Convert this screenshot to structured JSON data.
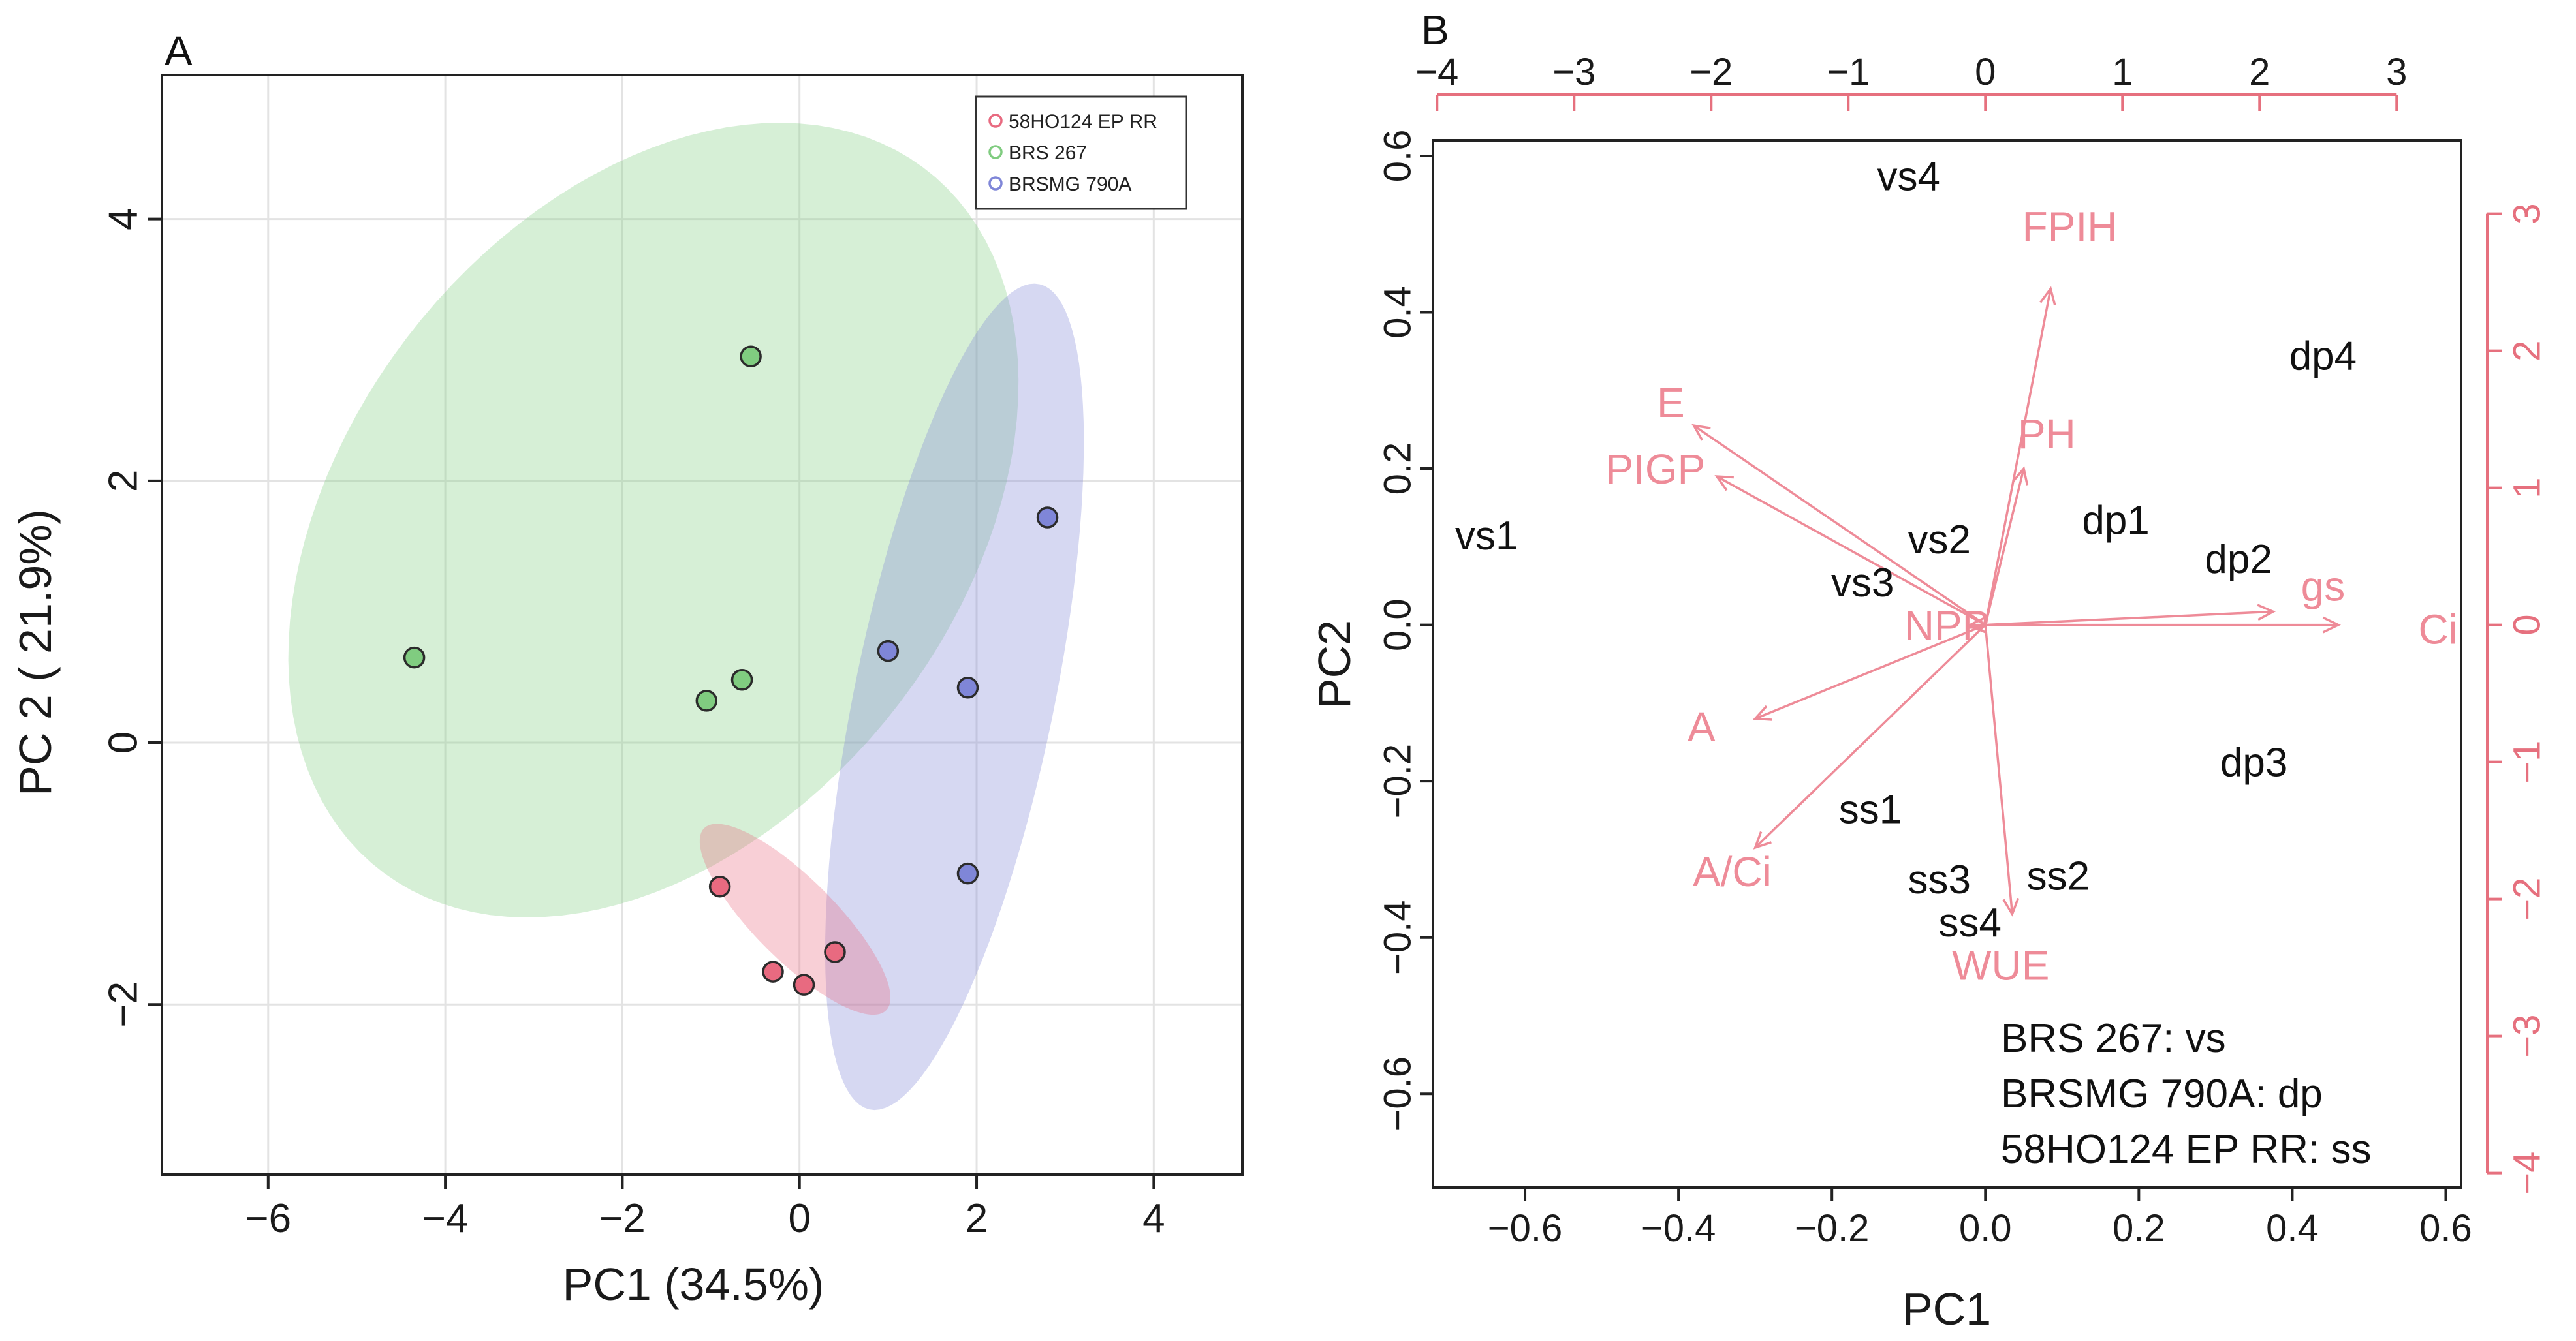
{
  "chart_data": [
    {
      "type": "scatter",
      "panel_label": "A",
      "xlabel": "PC1 (34.5%)",
      "ylabel": "PC 2 ( 21.9%)",
      "xlim": [
        -7.2,
        5.0
      ],
      "ylim": [
        -3.3,
        5.1
      ],
      "xticks": [
        -6,
        -4,
        -2,
        0,
        2,
        4
      ],
      "yticks": [
        -2,
        0,
        2,
        4
      ],
      "grid": true,
      "legend_position": "top-right",
      "series": [
        {
          "name": "58HO124 EP RR",
          "color": "#e86a80",
          "points": [
            [
              -0.9,
              -1.1
            ],
            [
              -0.3,
              -1.75
            ],
            [
              0.05,
              -1.85
            ],
            [
              0.4,
              -1.6
            ]
          ],
          "ellipse": {
            "center": [
              -0.05,
              -1.35
            ],
            "semi_axes": [
              1.25,
              0.36
            ],
            "angle_deg": -32
          }
        },
        {
          "name": "BRS 267",
          "color": "#80cc80",
          "points": [
            [
              -0.55,
              2.95
            ],
            [
              -4.35,
              0.65
            ],
            [
              -0.65,
              0.48
            ],
            [
              -1.05,
              0.32
            ]
          ],
          "ellipse": {
            "center": [
              -1.65,
              1.7
            ],
            "semi_axes": [
              4.35,
              2.7
            ],
            "angle_deg": 24
          }
        },
        {
          "name": "BRSMG 790A",
          "color": "#7f86d8",
          "points": [
            [
              2.8,
              1.72
            ],
            [
              1.0,
              0.7
            ],
            [
              1.9,
              0.42
            ],
            [
              1.9,
              -1.0
            ]
          ],
          "ellipse": {
            "center": [
              1.75,
              0.35
            ],
            "semi_axes": [
              3.3,
              1.1
            ],
            "angle_deg": 72
          }
        }
      ]
    },
    {
      "type": "scatter",
      "panel_label": "B",
      "xlabel": "PC1",
      "ylabel": "PC2",
      "xlim": [
        -0.72,
        0.62
      ],
      "ylim": [
        -0.72,
        0.62
      ],
      "xticks": [
        -0.6,
        -0.4,
        -0.2,
        0.0,
        0.2,
        0.4,
        0.6
      ],
      "yticks": [
        -0.6,
        -0.4,
        -0.2,
        0.0,
        0.2,
        0.4,
        0.6
      ],
      "top_axis_ticks": [
        -4,
        -3,
        -2,
        -1,
        0,
        1,
        2,
        3
      ],
      "right_axis_ticks": [
        -4,
        -3,
        -2,
        -1,
        0,
        1,
        2,
        3
      ],
      "observations": [
        {
          "label": "vs4",
          "x": -0.1,
          "y": 0.57
        },
        {
          "label": "dp4",
          "x": 0.44,
          "y": 0.34
        },
        {
          "label": "vs1",
          "x": -0.65,
          "y": 0.11
        },
        {
          "label": "dp1",
          "x": 0.17,
          "y": 0.13
        },
        {
          "label": "vs2",
          "x": -0.06,
          "y": 0.105
        },
        {
          "label": "dp2",
          "x": 0.33,
          "y": 0.08
        },
        {
          "label": "vs3",
          "x": -0.16,
          "y": 0.05
        },
        {
          "label": "dp3",
          "x": 0.35,
          "y": -0.18
        },
        {
          "label": "ss1",
          "x": -0.15,
          "y": -0.24
        },
        {
          "label": "ss3",
          "x": -0.06,
          "y": -0.33
        },
        {
          "label": "ss2",
          "x": 0.095,
          "y": -0.325
        },
        {
          "label": "ss4",
          "x": -0.02,
          "y": -0.385
        }
      ],
      "variables": [
        {
          "label": "FPIH",
          "x": 0.085,
          "y": 0.43,
          "lx": 0.11,
          "ly": 0.505
        },
        {
          "label": "E",
          "x": -0.38,
          "y": 0.255,
          "lx": -0.41,
          "ly": 0.28
        },
        {
          "label": "PIGP",
          "x": -0.35,
          "y": 0.19,
          "lx": -0.43,
          "ly": 0.195
        },
        {
          "label": "PH",
          "x": 0.05,
          "y": 0.2,
          "lx": 0.08,
          "ly": 0.24
        },
        {
          "label": "gs",
          "x": 0.375,
          "y": 0.017,
          "lx": 0.44,
          "ly": 0.045
        },
        {
          "label": "Ci",
          "x": 0.46,
          "y": 0.0,
          "lx": 0.59,
          "ly": -0.01
        },
        {
          "label": "NPP",
          "x": -0.02,
          "y": 0.0,
          "lx": -0.05,
          "ly": -0.005
        },
        {
          "label": "A",
          "x": -0.3,
          "y": -0.12,
          "lx": -0.37,
          "ly": -0.135
        },
        {
          "label": "A/Ci",
          "x": -0.3,
          "y": -0.285,
          "lx": -0.33,
          "ly": -0.32
        },
        {
          "label": "WUE",
          "x": 0.035,
          "y": -0.37,
          "lx": 0.02,
          "ly": -0.44
        }
      ],
      "annotations": [
        "BRS 267: vs",
        "BRSMG 790A: dp",
        "58HO124 EP RR: ss"
      ]
    }
  ]
}
